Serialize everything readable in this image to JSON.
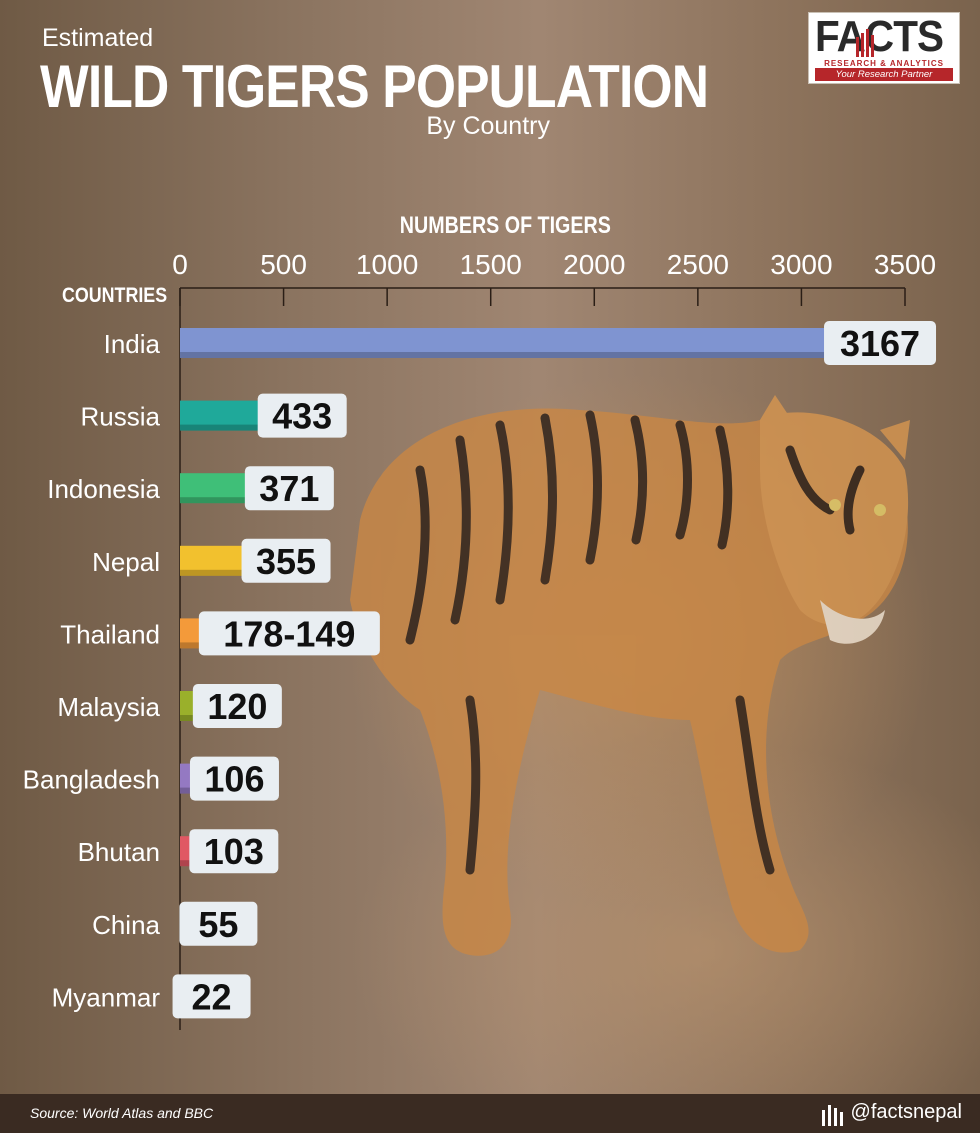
{
  "header": {
    "sup": "Estimated",
    "title": "WILD TIGERS POPULATION",
    "sub": "By Country"
  },
  "logo": {
    "word": "FACTS",
    "tagline": "RESEARCH & ANALYTICS",
    "band": "Your Research Partner"
  },
  "chart_data": {
    "type": "bar",
    "orientation": "horizontal",
    "xlabel": "NUMBERS OF TIGERS",
    "ylabel": "COUNTRIES",
    "xlim": [
      0,
      3500
    ],
    "ticks": [
      0,
      500,
      1000,
      1500,
      2000,
      2500,
      3000,
      3500
    ],
    "categories": [
      "India",
      "Russia",
      "Indonesia",
      "Nepal",
      "Thailand",
      "Malaysia",
      "Bangladesh",
      "Bhutan",
      "China",
      "Myanmar"
    ],
    "values": [
      3167,
      433,
      371,
      355,
      149,
      120,
      106,
      103,
      55,
      22
    ],
    "labels": [
      "3167",
      "433",
      "371",
      "355",
      "178-149",
      "120",
      "106",
      "103",
      "55",
      "22"
    ],
    "colors": [
      "#7f94d1",
      "#1fa99a",
      "#3fbf78",
      "#f2c12e",
      "#f39a3a",
      "#9ab02b",
      "#9479c2",
      "#e05863",
      "#c9c29b",
      "#e6a6b4"
    ]
  },
  "footer": {
    "source": "Source: World Atlas and BBC",
    "handle": "@factsnepal"
  }
}
